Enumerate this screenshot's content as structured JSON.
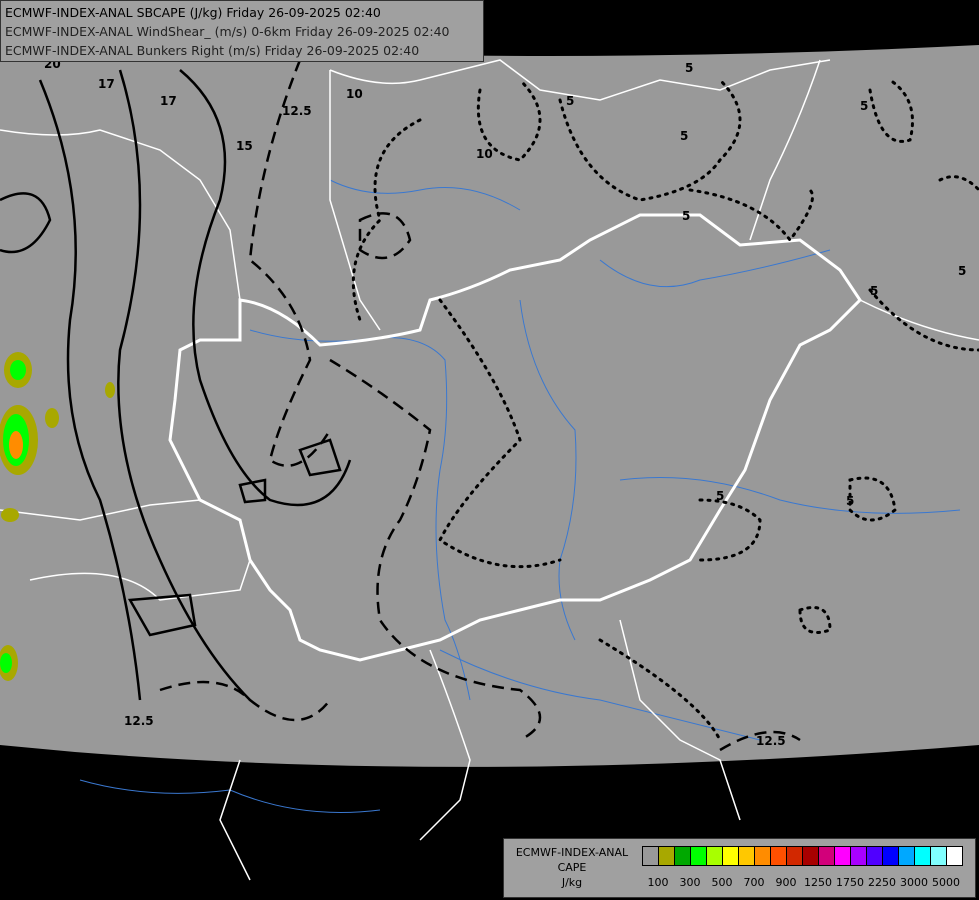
{
  "header": {
    "lines": [
      "ECMWF-INDEX-ANAL SBCAPE (J/kg) Friday 26-09-2025 02:40",
      "ECMWF-INDEX-ANAL WindShear_ (m/s) 0-6km Friday 26-09-2025 02:40",
      "ECMWF-INDEX-ANAL Bunkers Right (m/s) Friday 26-09-2025 02:40"
    ]
  },
  "legend": {
    "title": [
      "ECMWF-INDEX-ANAL",
      "CAPE",
      "J/kg"
    ],
    "colors": [
      "#999999",
      "#a8a800",
      "#00a800",
      "#00ff00",
      "#a8ff00",
      "#ffff00",
      "#ffc800",
      "#ff8c00",
      "#ff5000",
      "#d22800",
      "#a80000",
      "#d2007a",
      "#ff00ff",
      "#a800ff",
      "#5000ff",
      "#0000ff",
      "#00a8ff",
      "#00ffff",
      "#80ffff",
      "#ffffff"
    ],
    "tick_labels": [
      "100",
      "300",
      "500",
      "700",
      "900",
      "1250",
      "1750",
      "2250",
      "3000",
      "5000"
    ]
  },
  "map": {
    "background_color": "#999999",
    "outside_color": "#000000",
    "border_color": "#ffffff",
    "river_color": "#3a78d0",
    "contour_labels": [
      "20",
      "17",
      "17",
      "15",
      "12.5",
      "10",
      "10",
      "5",
      "5",
      "5",
      "5",
      "5",
      "5",
      "5",
      "5",
      "12.5",
      "12.5",
      "5"
    ]
  }
}
